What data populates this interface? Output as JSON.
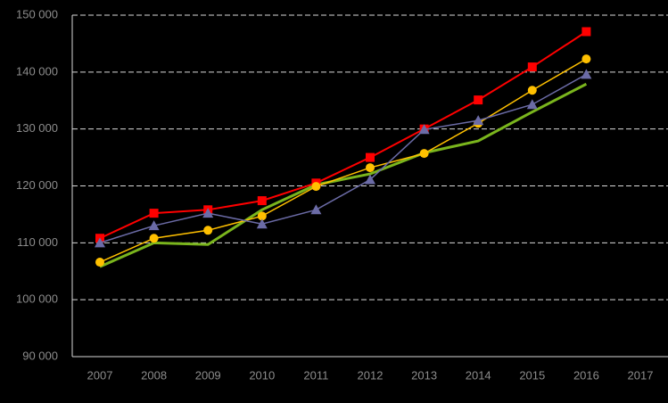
{
  "chart_data": {
    "type": "line",
    "categories": [
      "2007",
      "2008",
      "2009",
      "2010",
      "2011",
      "2012",
      "2013",
      "2014",
      "2015",
      "2016",
      "2017"
    ],
    "series": [
      {
        "color": "#7ab51d",
        "marker": "none",
        "values": [
          105800,
          110000,
          109700,
          115800,
          120200,
          122100,
          125800,
          127900,
          133000,
          137900,
          null
        ]
      },
      {
        "color": "#ff0000",
        "marker": "square",
        "values": [
          110800,
          115200,
          115800,
          117400,
          120500,
          125000,
          130000,
          135100,
          140900,
          147100,
          null
        ]
      },
      {
        "color": "#ffc000",
        "marker": "circle",
        "values": [
          106600,
          110800,
          112200,
          114700,
          119900,
          123200,
          125700,
          131000,
          136800,
          142300,
          null
        ]
      },
      {
        "color": "#6b6ba6",
        "marker": "triangle",
        "values": [
          110000,
          113000,
          115200,
          113300,
          115800,
          121100,
          129900,
          131500,
          134300,
          139600,
          null
        ]
      }
    ],
    "ylim": [
      90000,
      150000
    ],
    "yticks": [
      {
        "value": 90000,
        "label": "90 000"
      },
      {
        "value": 100000,
        "label": "100 000"
      },
      {
        "value": 110000,
        "label": "110 000"
      },
      {
        "value": 120000,
        "label": "120 000"
      },
      {
        "value": 130000,
        "label": "130 000"
      },
      {
        "value": 140000,
        "label": "140 000"
      },
      {
        "value": 150000,
        "label": "150 000"
      }
    ],
    "grid": true
  }
}
